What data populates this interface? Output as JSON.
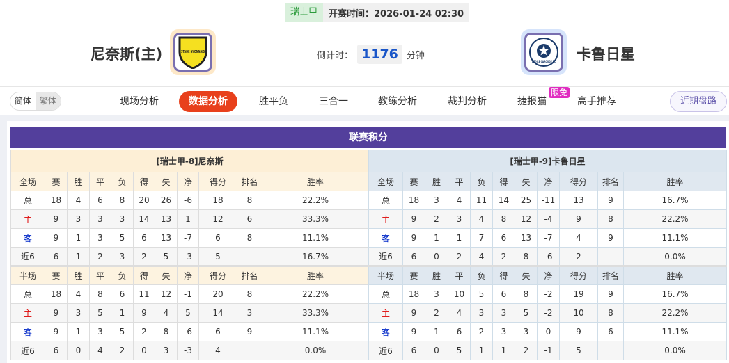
{
  "match": {
    "league": "瑞士甲",
    "kickoff": "开赛时间：2026-01-24 02:30",
    "home": "尼奈斯(主)",
    "away": "卡鲁日星",
    "countdown_label": "倒计时：",
    "countdown": "1176",
    "countdown_unit": "分钟",
    "home_logo_text": "STADE NYONNAIS",
    "away_logo_text": "ETOILE CAROUGE FC"
  },
  "nav": {
    "lang": [
      "简体",
      "繁体"
    ],
    "items": [
      "现场分析",
      "数据分析",
      "胜平负",
      "三合一",
      "教练分析",
      "裁判分析",
      "捷报猫",
      "高手推荐"
    ],
    "active": "数据分析",
    "badge": "限免",
    "recent": "近期盘路"
  },
  "standings": {
    "title": "联赛积分",
    "home": {
      "team": "[瑞士甲-8]尼奈斯",
      "full": {
        "header": [
          "全场",
          "赛",
          "胜",
          "平",
          "负",
          "得",
          "失",
          "净",
          "得分",
          "排名",
          "胜率"
        ],
        "rows": [
          [
            "总",
            "18",
            "4",
            "6",
            "8",
            "20",
            "26",
            "-6",
            "18",
            "8",
            "22.2%"
          ],
          [
            "主",
            "9",
            "3",
            "3",
            "3",
            "14",
            "13",
            "1",
            "12",
            "6",
            "33.3%"
          ],
          [
            "客",
            "9",
            "1",
            "3",
            "5",
            "6",
            "13",
            "-7",
            "6",
            "8",
            "11.1%"
          ],
          [
            "近6",
            "6",
            "1",
            "2",
            "3",
            "2",
            "5",
            "-3",
            "5",
            "",
            "16.7%"
          ]
        ]
      },
      "half": {
        "header": [
          "半场",
          "赛",
          "胜",
          "平",
          "负",
          "得",
          "失",
          "净",
          "得分",
          "排名",
          "胜率"
        ],
        "rows": [
          [
            "总",
            "18",
            "4",
            "8",
            "6",
            "11",
            "12",
            "-1",
            "20",
            "8",
            "22.2%"
          ],
          [
            "主",
            "9",
            "3",
            "5",
            "1",
            "9",
            "4",
            "5",
            "14",
            "3",
            "33.3%"
          ],
          [
            "客",
            "9",
            "1",
            "3",
            "5",
            "2",
            "8",
            "-6",
            "6",
            "9",
            "11.1%"
          ],
          [
            "近6",
            "6",
            "0",
            "4",
            "2",
            "0",
            "3",
            "-3",
            "4",
            "",
            "0.0%"
          ]
        ]
      }
    },
    "away": {
      "team": "[瑞士甲-9]卡鲁日星",
      "full": {
        "header": [
          "全场",
          "赛",
          "胜",
          "平",
          "负",
          "得",
          "失",
          "净",
          "得分",
          "排名",
          "胜率"
        ],
        "rows": [
          [
            "总",
            "18",
            "3",
            "4",
            "11",
            "14",
            "25",
            "-11",
            "13",
            "9",
            "16.7%"
          ],
          [
            "主",
            "9",
            "2",
            "3",
            "4",
            "8",
            "12",
            "-4",
            "9",
            "8",
            "22.2%"
          ],
          [
            "客",
            "9",
            "1",
            "1",
            "7",
            "6",
            "13",
            "-7",
            "4",
            "9",
            "11.1%"
          ],
          [
            "近6",
            "6",
            "0",
            "2",
            "4",
            "2",
            "8",
            "-6",
            "2",
            "",
            "0.0%"
          ]
        ]
      },
      "half": {
        "header": [
          "半场",
          "赛",
          "胜",
          "平",
          "负",
          "得",
          "失",
          "净",
          "得分",
          "排名",
          "胜率"
        ],
        "rows": [
          [
            "总",
            "18",
            "3",
            "10",
            "5",
            "6",
            "8",
            "-2",
            "19",
            "9",
            "16.7%"
          ],
          [
            "主",
            "9",
            "2",
            "4",
            "3",
            "3",
            "5",
            "-2",
            "10",
            "8",
            "22.2%"
          ],
          [
            "客",
            "9",
            "1",
            "6",
            "2",
            "3",
            "3",
            "0",
            "9",
            "6",
            "11.1%"
          ],
          [
            "近6",
            "6",
            "0",
            "5",
            "1",
            "1",
            "2",
            "-1",
            "5",
            "",
            "0.0%"
          ]
        ]
      }
    }
  },
  "colors": {
    "accent": "#e8401c",
    "title_bar": "#533f9c",
    "home_label": "#dd0000",
    "away_label": "#0028c8"
  }
}
